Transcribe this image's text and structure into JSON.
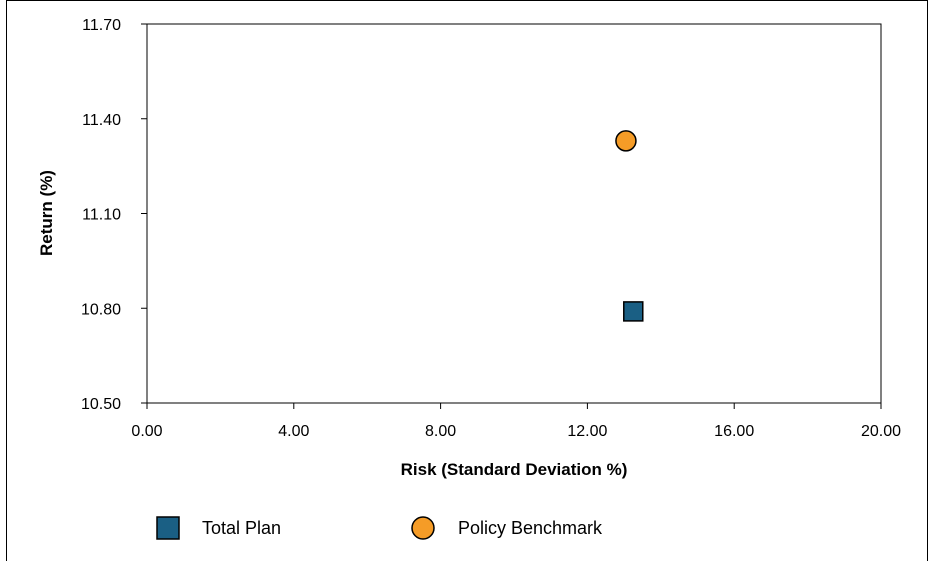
{
  "chart_data": {
    "type": "scatter",
    "xlabel": "Risk (Standard Deviation %)",
    "ylabel": "Return (%)",
    "xlim": [
      0,
      20
    ],
    "ylim": [
      10.5,
      11.7
    ],
    "x_ticks": [
      "0.00",
      "4.00",
      "8.00",
      "12.00",
      "16.00",
      "20.00"
    ],
    "y_ticks": [
      "10.50",
      "10.80",
      "11.10",
      "11.40",
      "11.70"
    ],
    "grid": false,
    "legend_position": "bottom",
    "series": [
      {
        "name": "Total Plan",
        "marker": "square",
        "color": "#1a5f84",
        "points": [
          {
            "x": 13.25,
            "y": 10.79
          }
        ]
      },
      {
        "name": "Policy Benchmark",
        "marker": "circle",
        "color": "#f59c27",
        "points": [
          {
            "x": 13.05,
            "y": 11.33
          }
        ]
      }
    ]
  }
}
